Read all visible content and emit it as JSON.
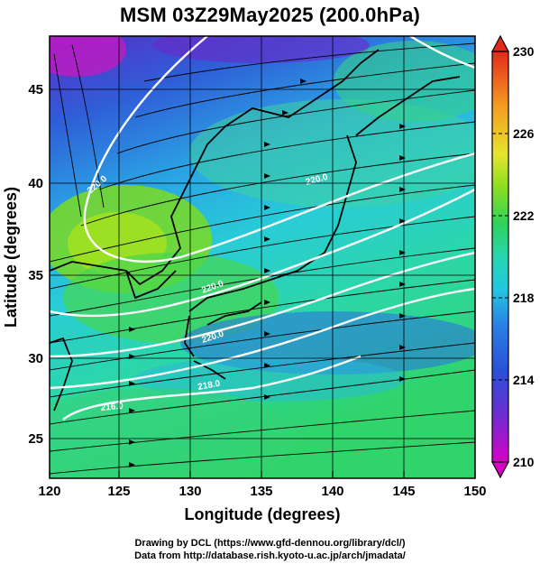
{
  "title": "MSM 03Z29May2025 (200.0hPa)",
  "x_axis": {
    "label": "Longitude (degrees)",
    "ticks": [
      "120",
      "125",
      "130",
      "135",
      "140",
      "145",
      "150"
    ],
    "range": [
      120,
      150
    ]
  },
  "y_axis": {
    "label": "Latitude  (degrees)",
    "ticks": [
      "25",
      "30",
      "35",
      "40",
      "45"
    ],
    "range": [
      22.4,
      47.6
    ]
  },
  "colorbar": {
    "ticks": [
      "210",
      "214",
      "218",
      "222",
      "226",
      "230"
    ],
    "range": [
      210,
      230
    ],
    "colors": [
      "#d000c0",
      "#4a3ad0",
      "#2a6ee0",
      "#27c2e0",
      "#2fd3a0",
      "#3ad040",
      "#9ee020",
      "#e8e428",
      "#f0a020",
      "#e83020"
    ]
  },
  "contours": [
    {
      "label": "220.0"
    },
    {
      "label": "220.0"
    },
    {
      "label": "220.0"
    },
    {
      "label": "220.0"
    },
    {
      "label": "218.0"
    },
    {
      "label": "216.0"
    }
  ],
  "credits": {
    "line1": "Drawing by DCL (https://www.gfd-dennou.org/library/dcl/)",
    "line2": "Data from http://database.rish.kyoto-u.ac.jp/arch/jmadata/"
  }
}
